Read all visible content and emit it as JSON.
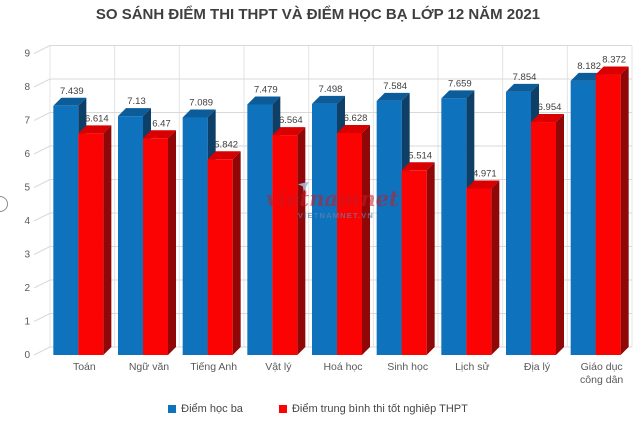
{
  "title": "SO SÁNH ĐIỂM THI THPT VÀ ĐIỂM HỌC BẠ LỚP 12 NĂM 2021",
  "watermark": {
    "text": "vietnamnet",
    "subtext": "VIETNAMNET.VN"
  },
  "colors": {
    "blue_front": "#0F72BC",
    "blue_side": "#0E3F66",
    "blue_top": "#0C5C99",
    "red_front": "#FB0303",
    "red_side": "#8F0707",
    "red_top": "#D80000",
    "grid": "#D9D9D9",
    "grid_vertical": "#E4E4E4",
    "title_text": "#3F3F3F",
    "axis_text": "#595959",
    "data_label_text": "#404040"
  },
  "chart_data": {
    "type": "bar",
    "variant": "3d-clustered-column",
    "title": "SO SÁNH ĐIỂM THI THPT VÀ ĐIỂM HỌC BẠ LỚP 12 NĂM 2021",
    "categories": [
      "Toán",
      "Ngữ văn",
      "Tiếng Anh",
      "Vật lý",
      "Hoá học",
      "Sinh học",
      "Lịch sử",
      "Địa lý",
      "Giáo dục công dân"
    ],
    "series": [
      {
        "name": "Điểm học ba",
        "color": "#0F72BC",
        "values": [
          7.439,
          7.13,
          7.089,
          7.479,
          7.498,
          7.584,
          7.659,
          7.854,
          8.182
        ]
      },
      {
        "name": "Điểm trung bình thi tốt nghiêp THPT",
        "color": "#FB0303",
        "values": [
          6.614,
          6.47,
          5.842,
          6.564,
          6.628,
          5.514,
          4.971,
          6.954,
          8.372
        ]
      }
    ],
    "xlabel": "",
    "ylabel": "",
    "ylim": [
      0,
      9
    ],
    "ytick_interval": 1,
    "yticks": [
      0,
      1,
      2,
      3,
      4,
      5,
      6,
      7,
      8,
      9
    ],
    "grid": true,
    "data_labels": true,
    "legend_position": "bottom"
  }
}
